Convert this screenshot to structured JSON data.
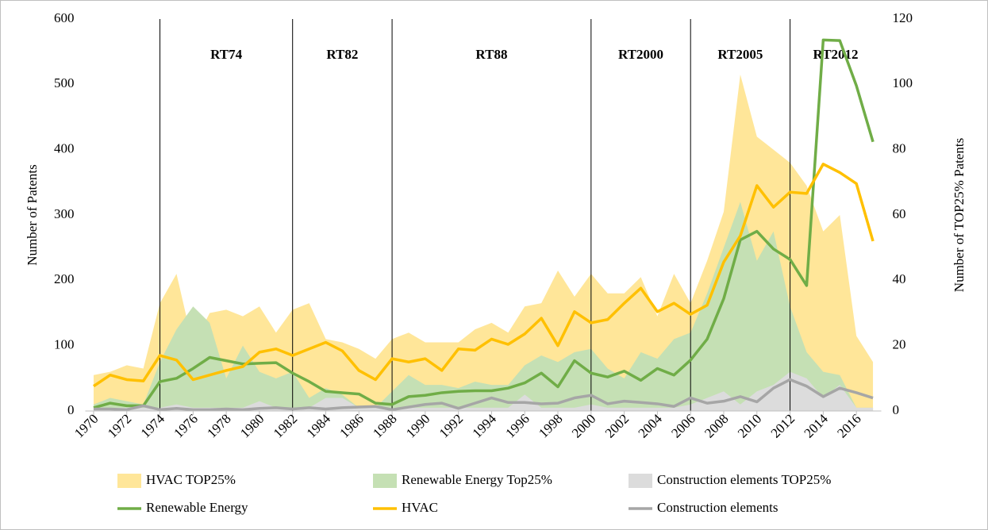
{
  "chart_data": {
    "type": "line",
    "x": [
      1970,
      1971,
      1972,
      1973,
      1974,
      1975,
      1976,
      1977,
      1978,
      1979,
      1980,
      1981,
      1982,
      1983,
      1984,
      1985,
      1986,
      1987,
      1988,
      1989,
      1990,
      1991,
      1992,
      1993,
      1994,
      1995,
      1996,
      1997,
      1998,
      1999,
      2000,
      2001,
      2002,
      2003,
      2004,
      2005,
      2006,
      2007,
      2008,
      2009,
      2010,
      2011,
      2012,
      2013,
      2014,
      2015,
      2016,
      2017
    ],
    "xlim": [
      1969.5,
      2017.5
    ],
    "xticks": [
      1970,
      1972,
      1974,
      1976,
      1978,
      1980,
      1982,
      1984,
      1986,
      1988,
      1990,
      1992,
      1994,
      1996,
      1998,
      2000,
      2002,
      2004,
      2006,
      2008,
      2010,
      2012,
      2014,
      2016
    ],
    "ylim": [
      0,
      600
    ],
    "yticks": [
      0,
      100,
      200,
      300,
      400,
      500,
      600
    ],
    "y2lim": [
      0,
      120
    ],
    "y2ticks": [
      0,
      20,
      40,
      60,
      80,
      100,
      120
    ],
    "y_label": "Number of Patents",
    "y2_label": "Number of TOP25% Patents",
    "periods": [
      {
        "label": "RT74",
        "start": 1974
      },
      {
        "label": "RT82",
        "start": 1982
      },
      {
        "label": "RT88",
        "start": 1988
      },
      {
        "label": "RT2000",
        "start": 2000
      },
      {
        "label": "RT2005",
        "start": 2006
      },
      {
        "label": "RT2012",
        "start": 2012
      }
    ],
    "series": [
      {
        "name": "HVAC TOP25%",
        "style": "area",
        "axis": "y2",
        "color": "#ffe699",
        "values": [
          11,
          12,
          14,
          13,
          33,
          42,
          20,
          30,
          31,
          29,
          32,
          24,
          31,
          33,
          22,
          21,
          19,
          16,
          22,
          24,
          21,
          21,
          21,
          25,
          27,
          24,
          32,
          33,
          43,
          35,
          42,
          36,
          36,
          41,
          29,
          42,
          33,
          46,
          61,
          103,
          84,
          80,
          76,
          69,
          55,
          60,
          23,
          15
        ]
      },
      {
        "name": "Renewable Energy Top25%",
        "style": "area",
        "axis": "y2",
        "color": "#c5e0b4",
        "values": [
          2,
          4,
          3,
          2,
          15,
          25,
          32,
          27,
          10,
          20,
          12,
          10,
          12,
          4,
          7,
          5,
          1,
          1,
          6,
          11,
          8,
          8,
          7,
          9,
          8,
          8,
          14,
          17,
          15,
          18,
          19,
          13,
          10,
          18,
          16,
          22,
          24,
          36,
          50,
          64,
          46,
          55,
          32,
          18,
          12,
          11,
          1,
          1
        ]
      },
      {
        "name": "Construction elements TOP25%",
        "style": "area",
        "axis": "y2",
        "color": "#dcdcdc",
        "values": [
          1,
          1,
          1,
          1,
          1,
          2,
          1,
          1,
          1,
          1,
          3,
          1,
          1,
          1,
          4,
          4,
          1,
          1,
          1,
          1,
          1,
          1,
          1,
          1,
          1,
          1,
          5,
          1,
          1,
          1,
          2,
          1,
          1,
          1,
          1,
          1,
          2,
          4,
          6,
          2,
          6,
          8,
          12,
          10,
          4,
          8,
          1,
          1
        ]
      },
      {
        "name": "Renewable Energy",
        "style": "line",
        "color": "#70ad47",
        "values": [
          5,
          12,
          8,
          8,
          45,
          50,
          65,
          82,
          77,
          72,
          73,
          74,
          58,
          45,
          30,
          28,
          26,
          12,
          10,
          22,
          24,
          28,
          30,
          31,
          31,
          35,
          43,
          58,
          37,
          77,
          58,
          52,
          61,
          47,
          65,
          55,
          78,
          110,
          172,
          262,
          275,
          248,
          232,
          192,
          568,
          567,
          498,
          412
        ]
      },
      {
        "name": "HVAC",
        "style": "line",
        "color": "#ffc000",
        "values": [
          38,
          55,
          48,
          46,
          85,
          78,
          48,
          55,
          62,
          68,
          90,
          95,
          85,
          95,
          105,
          92,
          62,
          48,
          80,
          75,
          80,
          62,
          95,
          93,
          110,
          102,
          118,
          142,
          100,
          152,
          135,
          140,
          165,
          188,
          152,
          165,
          148,
          162,
          228,
          268,
          345,
          312,
          335,
          333,
          378,
          365,
          348,
          260
        ]
      },
      {
        "name": "Construction elements",
        "style": "line",
        "color": "#a6a6a6",
        "values": [
          3,
          3,
          2,
          8,
          2,
          4,
          2,
          2,
          3,
          2,
          4,
          5,
          3,
          5,
          3,
          5,
          6,
          7,
          2,
          6,
          10,
          12,
          4,
          12,
          20,
          13,
          13,
          11,
          12,
          20,
          24,
          11,
          15,
          13,
          11,
          7,
          20,
          12,
          15,
          22,
          14,
          35,
          48,
          38,
          22,
          35,
          28,
          20
        ]
      }
    ]
  }
}
